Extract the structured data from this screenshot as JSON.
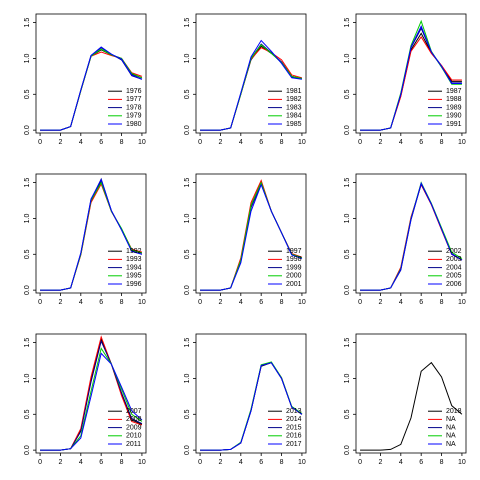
{
  "chart_data": [
    {
      "type": "line",
      "x": [
        0,
        1,
        2,
        3,
        4,
        5,
        6,
        7,
        8,
        9,
        10
      ],
      "xlim": [
        -0.4,
        10.4
      ],
      "ylim": [
        -0.04,
        1.62
      ],
      "xticks": [
        0,
        2,
        4,
        6,
        8,
        10
      ],
      "yticks": [
        {
          "value": 0,
          "label": "0.0"
        },
        0.5,
        {
          "value": 1,
          "label": "1.0"
        },
        1.5
      ],
      "legend": "bottomright",
      "series": [
        {
          "name": "1976",
          "color": "#000000",
          "values": [
            0,
            0,
            0,
            0.05,
            0.55,
            1.03,
            1.12,
            1.05,
            1.0,
            0.78,
            0.73
          ]
        },
        {
          "name": "1977",
          "color": "#ff0000",
          "values": [
            0,
            0,
            0,
            0.05,
            0.55,
            1.03,
            1.09,
            1.04,
            1.0,
            0.8,
            0.75
          ]
        },
        {
          "name": "1978",
          "color": "#00008b",
          "values": [
            0,
            0,
            0,
            0.05,
            0.56,
            1.04,
            1.15,
            1.06,
            0.98,
            0.76,
            0.71
          ]
        },
        {
          "name": "1979",
          "color": "#00cc00",
          "values": [
            0,
            0,
            0,
            0.05,
            0.55,
            1.03,
            1.13,
            1.05,
            1.0,
            0.79,
            0.73
          ]
        },
        {
          "name": "1980",
          "color": "#0000ff",
          "values": [
            0,
            0,
            0,
            0.05,
            0.56,
            1.04,
            1.16,
            1.06,
            0.99,
            0.77,
            0.71
          ]
        }
      ]
    },
    {
      "type": "line",
      "x": [
        0,
        1,
        2,
        3,
        4,
        5,
        6,
        7,
        8,
        9,
        10
      ],
      "xlim": [
        -0.4,
        10.4
      ],
      "ylim": [
        -0.04,
        1.62
      ],
      "xticks": [
        0,
        2,
        4,
        6,
        8,
        10
      ],
      "yticks": [
        {
          "value": 0,
          "label": "0.0"
        },
        0.5,
        {
          "value": 1,
          "label": "1.0"
        },
        1.5
      ],
      "legend": "bottomright",
      "series": [
        {
          "name": "1981",
          "color": "#000000",
          "values": [
            0,
            0,
            0,
            0.03,
            0.5,
            0.98,
            1.17,
            1.07,
            0.95,
            0.75,
            0.72
          ]
        },
        {
          "name": "1982",
          "color": "#ff0000",
          "values": [
            0,
            0,
            0,
            0.03,
            0.5,
            0.99,
            1.15,
            1.08,
            0.98,
            0.77,
            0.73
          ]
        },
        {
          "name": "1983",
          "color": "#00008b",
          "values": [
            0,
            0,
            0,
            0.03,
            0.51,
            1.0,
            1.2,
            1.08,
            0.95,
            0.74,
            0.72
          ]
        },
        {
          "name": "1984",
          "color": "#00cc00",
          "values": [
            0,
            0,
            0,
            0.03,
            0.5,
            1.0,
            1.19,
            1.07,
            0.94,
            0.75,
            0.72
          ]
        },
        {
          "name": "1985",
          "color": "#0000ff",
          "values": [
            0,
            0,
            0,
            0.03,
            0.52,
            1.02,
            1.25,
            1.1,
            0.93,
            0.73,
            0.71
          ]
        }
      ]
    },
    {
      "type": "line",
      "x": [
        0,
        1,
        2,
        3,
        4,
        5,
        6,
        7,
        8,
        9,
        10
      ],
      "xlim": [
        -0.4,
        10.4
      ],
      "ylim": [
        -0.04,
        1.62
      ],
      "xticks": [
        0,
        2,
        4,
        6,
        8,
        10
      ],
      "yticks": [
        {
          "value": 0,
          "label": "0.0"
        },
        0.5,
        {
          "value": 1,
          "label": "1.0"
        },
        1.5
      ],
      "legend": "bottomright",
      "series": [
        {
          "name": "1987",
          "color": "#000000",
          "values": [
            0,
            0,
            0,
            0.03,
            0.48,
            1.12,
            1.35,
            1.08,
            0.9,
            0.68,
            0.68
          ]
        },
        {
          "name": "1988",
          "color": "#ff0000",
          "values": [
            0,
            0,
            0,
            0.03,
            0.47,
            1.1,
            1.3,
            1.07,
            0.9,
            0.7,
            0.7
          ]
        },
        {
          "name": "1989",
          "color": "#00008b",
          "values": [
            0,
            0,
            0,
            0.03,
            0.5,
            1.15,
            1.42,
            1.09,
            0.88,
            0.66,
            0.66
          ]
        },
        {
          "name": "1990",
          "color": "#00cc00",
          "values": [
            0,
            0,
            0,
            0.03,
            0.52,
            1.18,
            1.52,
            1.1,
            0.88,
            0.64,
            0.64
          ]
        },
        {
          "name": "1991",
          "color": "#0000ff",
          "values": [
            0,
            0,
            0,
            0.03,
            0.5,
            1.16,
            1.45,
            1.09,
            0.89,
            0.65,
            0.65
          ]
        }
      ]
    },
    {
      "type": "line",
      "x": [
        0,
        1,
        2,
        3,
        4,
        5,
        6,
        7,
        8,
        9,
        10
      ],
      "xlim": [
        -0.4,
        10.4
      ],
      "ylim": [
        -0.04,
        1.62
      ],
      "xticks": [
        0,
        2,
        4,
        6,
        8,
        10
      ],
      "yticks": [
        {
          "value": 0,
          "label": "0.0"
        },
        0.5,
        {
          "value": 1,
          "label": "1.0"
        },
        1.5
      ],
      "legend": "bottomright",
      "series": [
        {
          "name": "1992",
          "color": "#000000",
          "values": [
            0,
            0,
            0,
            0.03,
            0.5,
            1.24,
            1.52,
            1.1,
            0.85,
            0.56,
            0.52
          ]
        },
        {
          "name": "1993",
          "color": "#ff0000",
          "values": [
            0,
            0,
            0,
            0.03,
            0.49,
            1.22,
            1.48,
            1.1,
            0.85,
            0.57,
            0.53
          ]
        },
        {
          "name": "1994",
          "color": "#00008b",
          "values": [
            0,
            0,
            0,
            0.03,
            0.51,
            1.26,
            1.55,
            1.11,
            0.84,
            0.55,
            0.5
          ]
        },
        {
          "name": "1995",
          "color": "#00cc00",
          "values": [
            0,
            0,
            0,
            0.03,
            0.5,
            1.25,
            1.5,
            1.1,
            0.86,
            0.56,
            0.52
          ]
        },
        {
          "name": "1996",
          "color": "#0000ff",
          "values": [
            0,
            0,
            0,
            0.03,
            0.52,
            1.27,
            1.54,
            1.11,
            0.84,
            0.54,
            0.5
          ]
        }
      ]
    },
    {
      "type": "line",
      "x": [
        0,
        1,
        2,
        3,
        4,
        5,
        6,
        7,
        8,
        9,
        10
      ],
      "xlim": [
        -0.4,
        10.4
      ],
      "ylim": [
        -0.04,
        1.62
      ],
      "xticks": [
        0,
        2,
        4,
        6,
        8,
        10
      ],
      "yticks": [
        {
          "value": 0,
          "label": "0.0"
        },
        0.5,
        {
          "value": 1,
          "label": "1.0"
        },
        1.5
      ],
      "legend": "bottomright",
      "series": [
        {
          "name": "1997",
          "color": "#000000",
          "values": [
            0,
            0,
            0,
            0.03,
            0.42,
            1.18,
            1.5,
            1.1,
            0.8,
            0.5,
            0.45
          ]
        },
        {
          "name": "1998",
          "color": "#ff0000",
          "values": [
            0,
            0,
            0,
            0.03,
            0.45,
            1.22,
            1.53,
            1.1,
            0.8,
            0.51,
            0.46
          ]
        },
        {
          "name": "1999",
          "color": "#00008b",
          "values": [
            0,
            0,
            0,
            0.03,
            0.4,
            1.15,
            1.48,
            1.1,
            0.8,
            0.5,
            0.45
          ]
        },
        {
          "name": "2000",
          "color": "#00cc00",
          "values": [
            0,
            0,
            0,
            0.03,
            0.42,
            1.18,
            1.5,
            1.1,
            0.8,
            0.5,
            0.45
          ]
        },
        {
          "name": "2001",
          "color": "#0000ff",
          "values": [
            0,
            0,
            0,
            0.03,
            0.38,
            1.1,
            1.47,
            1.1,
            0.8,
            0.49,
            0.44
          ]
        }
      ]
    },
    {
      "type": "line",
      "x": [
        0,
        1,
        2,
        3,
        4,
        5,
        6,
        7,
        8,
        9,
        10
      ],
      "xlim": [
        -0.4,
        10.4
      ],
      "ylim": [
        -0.04,
        1.62
      ],
      "xticks": [
        0,
        2,
        4,
        6,
        8,
        10
      ],
      "yticks": [
        {
          "value": 0,
          "label": "0.0"
        },
        0.5,
        {
          "value": 1,
          "label": "1.0"
        },
        1.5
      ],
      "legend": "bottomright",
      "series": [
        {
          "name": "2002",
          "color": "#000000",
          "values": [
            0,
            0,
            0,
            0.03,
            0.3,
            1.0,
            1.48,
            1.2,
            0.85,
            0.5,
            0.42
          ]
        },
        {
          "name": "2003",
          "color": "#ff0000",
          "values": [
            0,
            0,
            0,
            0.03,
            0.32,
            1.02,
            1.47,
            1.19,
            0.84,
            0.5,
            0.42
          ]
        },
        {
          "name": "2004",
          "color": "#00008b",
          "values": [
            0,
            0,
            0,
            0.03,
            0.28,
            0.98,
            1.48,
            1.2,
            0.86,
            0.51,
            0.42
          ]
        },
        {
          "name": "2005",
          "color": "#00cc00",
          "values": [
            0,
            0,
            0,
            0.03,
            0.3,
            1.0,
            1.5,
            1.21,
            0.87,
            0.53,
            0.44
          ]
        },
        {
          "name": "2006",
          "color": "#0000ff",
          "values": [
            0,
            0,
            0,
            0.03,
            0.29,
            0.99,
            1.49,
            1.2,
            0.85,
            0.5,
            0.42
          ]
        }
      ]
    },
    {
      "type": "line",
      "x": [
        0,
        1,
        2,
        3,
        4,
        5,
        6,
        7,
        8,
        9,
        10
      ],
      "xlim": [
        -0.4,
        10.4
      ],
      "ylim": [
        -0.04,
        1.62
      ],
      "xticks": [
        0,
        2,
        4,
        6,
        8,
        10
      ],
      "yticks": [
        {
          "value": 0,
          "label": "0.0"
        },
        0.5,
        {
          "value": 1,
          "label": "1.0"
        },
        1.5
      ],
      "legend": "bottomright",
      "series": [
        {
          "name": "2007",
          "color": "#000000",
          "values": [
            0,
            0,
            0,
            0.02,
            0.28,
            0.98,
            1.55,
            1.2,
            0.78,
            0.42,
            0.36
          ]
        },
        {
          "name": "2008",
          "color": "#ff0000",
          "values": [
            0,
            0,
            0,
            0.02,
            0.3,
            1.02,
            1.58,
            1.2,
            0.76,
            0.4,
            0.35
          ]
        },
        {
          "name": "2009",
          "color": "#00008b",
          "values": [
            0,
            0,
            0,
            0.02,
            0.26,
            0.95,
            1.52,
            1.2,
            0.8,
            0.44,
            0.37
          ]
        },
        {
          "name": "2010",
          "color": "#00cc00",
          "values": [
            0,
            0,
            0,
            0.02,
            0.2,
            0.82,
            1.42,
            1.2,
            0.85,
            0.5,
            0.4
          ]
        },
        {
          "name": "2011",
          "color": "#0000ff",
          "values": [
            0,
            0,
            0,
            0.02,
            0.17,
            0.75,
            1.35,
            1.2,
            0.88,
            0.55,
            0.42
          ]
        }
      ]
    },
    {
      "type": "line",
      "x": [
        0,
        1,
        2,
        3,
        4,
        5,
        6,
        7,
        8,
        9,
        10
      ],
      "xlim": [
        -0.4,
        10.4
      ],
      "ylim": [
        -0.04,
        1.62
      ],
      "xticks": [
        0,
        2,
        4,
        6,
        8,
        10
      ],
      "yticks": [
        {
          "value": 0,
          "label": "0.0"
        },
        0.5,
        {
          "value": 1,
          "label": "1.0"
        },
        1.5
      ],
      "legend": "bottomright",
      "series": [
        {
          "name": "2013",
          "color": "#000000",
          "values": [
            0,
            0,
            0,
            0.01,
            0.1,
            0.55,
            1.17,
            1.22,
            1.0,
            0.6,
            0.5
          ]
        },
        {
          "name": "2014",
          "color": "#ff0000",
          "values": [
            0,
            0,
            0,
            0.01,
            0.1,
            0.56,
            1.18,
            1.22,
            1.01,
            0.6,
            0.5
          ]
        },
        {
          "name": "2015",
          "color": "#00008b",
          "values": [
            0,
            0,
            0,
            0.01,
            0.1,
            0.55,
            1.18,
            1.22,
            1.0,
            0.6,
            0.5
          ]
        },
        {
          "name": "2016",
          "color": "#00cc00",
          "values": [
            0,
            0,
            0,
            0.01,
            0.11,
            0.57,
            1.19,
            1.23,
            1.01,
            0.61,
            0.51
          ]
        },
        {
          "name": "2017",
          "color": "#0000ff",
          "values": [
            0,
            0,
            0,
            0.01,
            0.1,
            0.55,
            1.18,
            1.22,
            1.0,
            0.6,
            0.5
          ]
        }
      ]
    },
    {
      "type": "line",
      "x": [
        0,
        1,
        2,
        3,
        4,
        5,
        6,
        7,
        8,
        9,
        10
      ],
      "xlim": [
        -0.4,
        10.4
      ],
      "ylim": [
        -0.04,
        1.62
      ],
      "xticks": [
        0,
        2,
        4,
        6,
        8,
        10
      ],
      "yticks": [
        {
          "value": 0,
          "label": "0.0"
        },
        0.5,
        {
          "value": 1,
          "label": "1.0"
        },
        1.5
      ],
      "legend": "bottomright",
      "series": [
        {
          "name": "2018",
          "color": "#000000",
          "values": [
            0,
            0,
            0,
            0.01,
            0.08,
            0.45,
            1.1,
            1.22,
            1.02,
            0.62,
            0.5
          ]
        },
        {
          "name": "NA",
          "color": "#ff0000",
          "values": [
            null,
            null,
            null,
            null,
            null,
            null,
            null,
            null,
            null,
            null,
            null
          ]
        },
        {
          "name": "NA",
          "color": "#00008b",
          "values": [
            null,
            null,
            null,
            null,
            null,
            null,
            null,
            null,
            null,
            null,
            null
          ]
        },
        {
          "name": "NA",
          "color": "#00cc00",
          "values": [
            null,
            null,
            null,
            null,
            null,
            null,
            null,
            null,
            null,
            null,
            null
          ]
        },
        {
          "name": "NA",
          "color": "#0000ff",
          "values": [
            null,
            null,
            null,
            null,
            null,
            null,
            null,
            null,
            null,
            null,
            null
          ]
        }
      ]
    }
  ]
}
